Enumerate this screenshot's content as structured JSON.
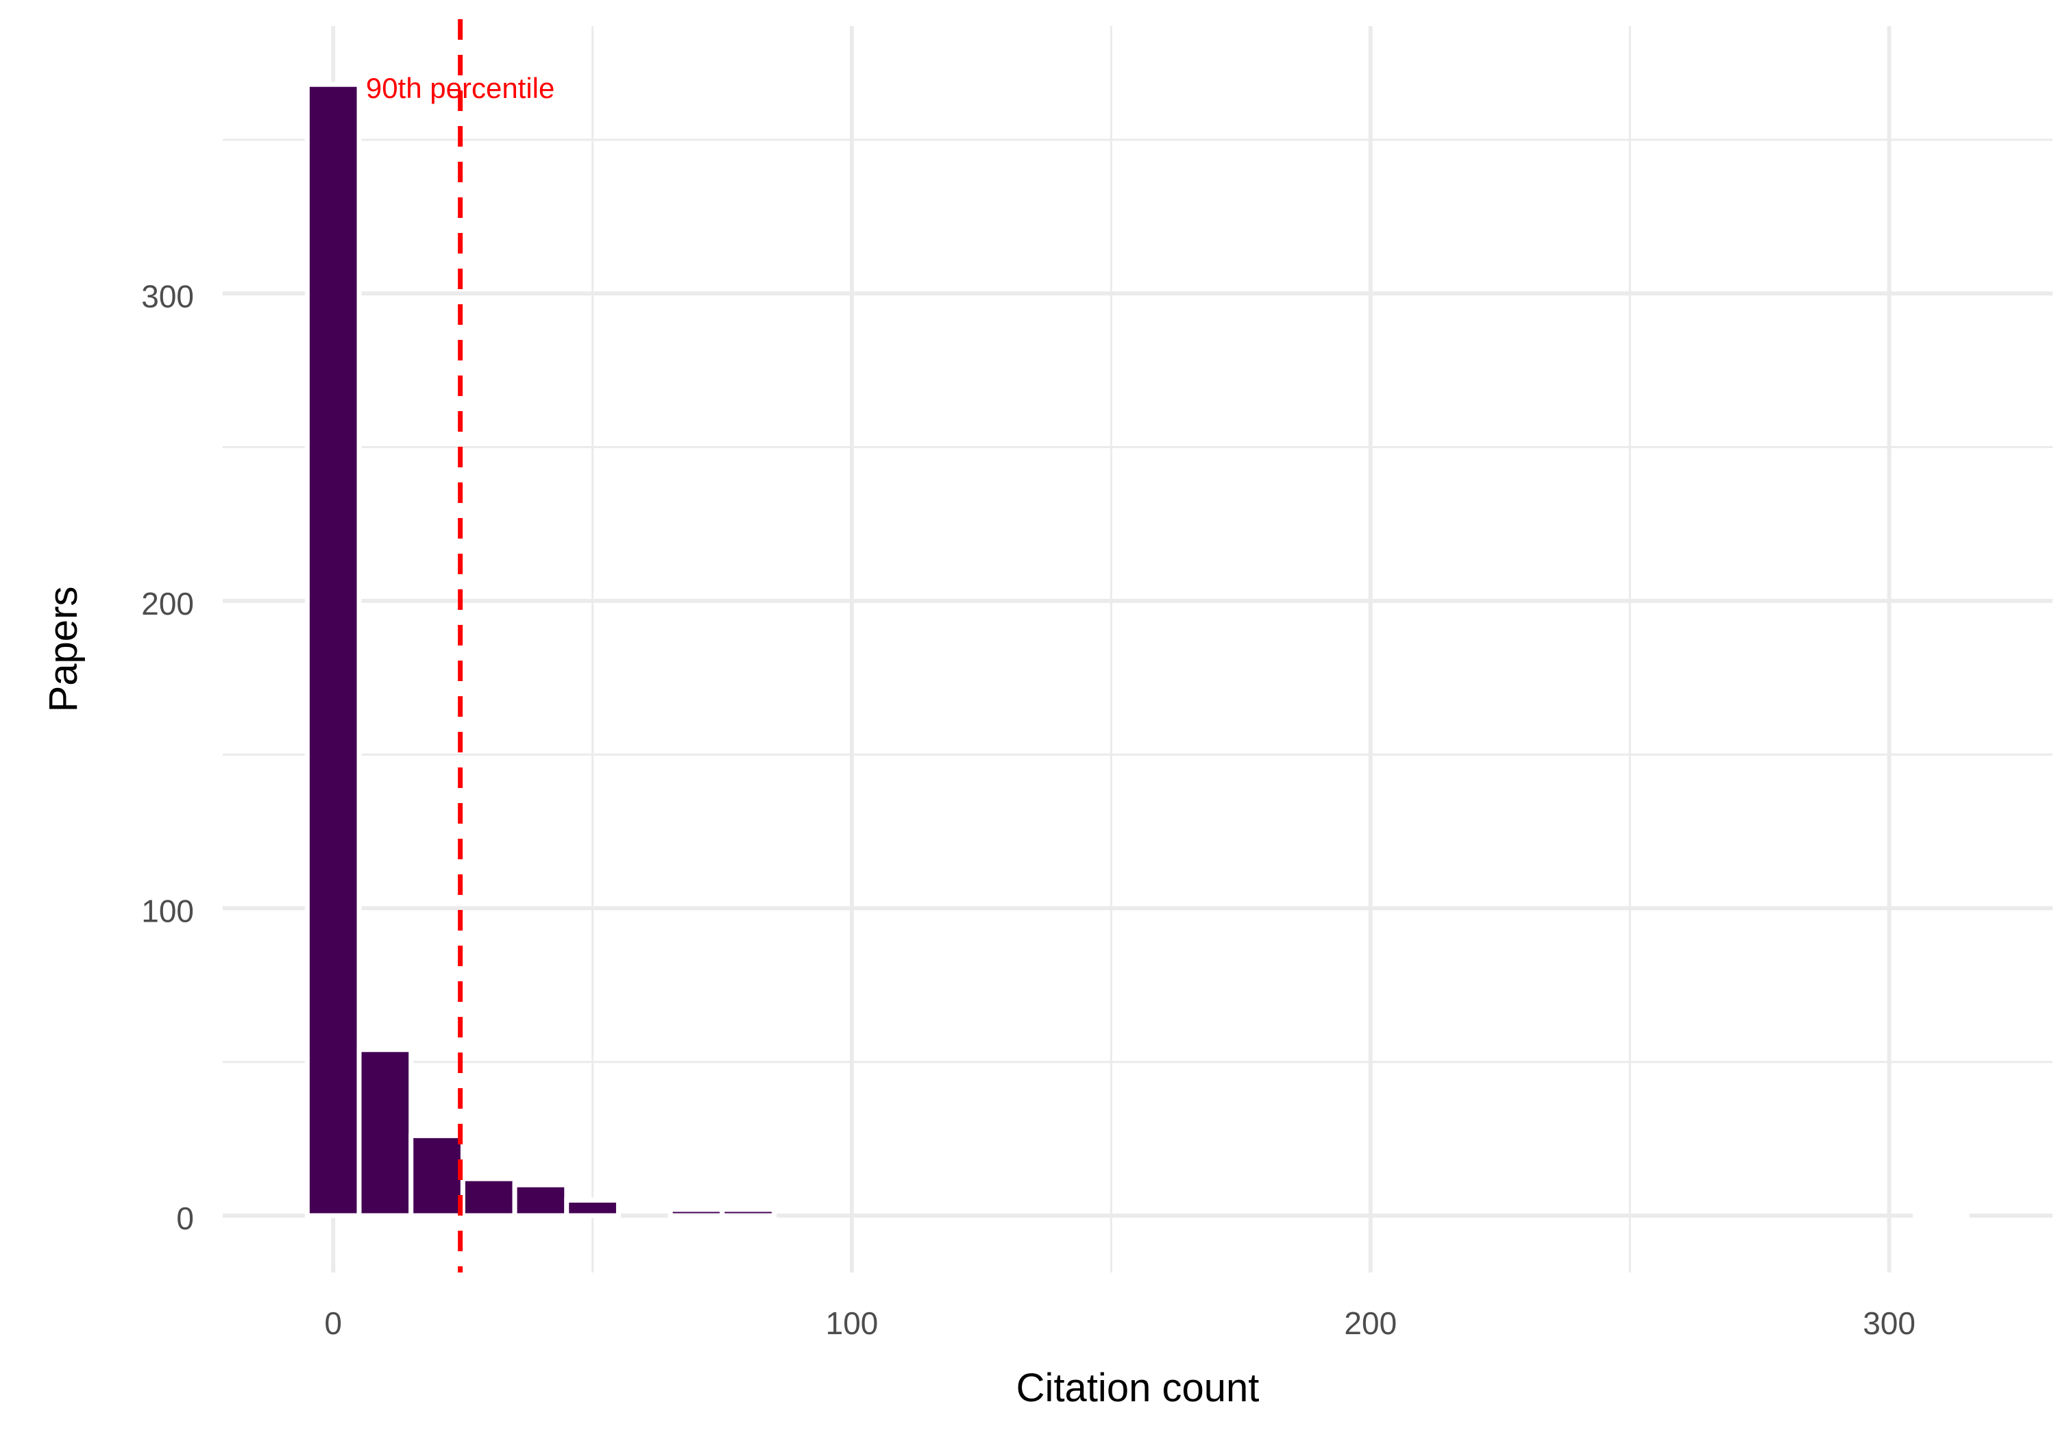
{
  "chart_data": {
    "type": "bar",
    "subtype": "histogram",
    "title": "",
    "xlabel": "Citation count",
    "ylabel": "Papers",
    "xlim": [
      -21.3,
      331.5
    ],
    "ylim": [
      -18.5,
      387
    ],
    "x_ticks": [
      0,
      100,
      200,
      300
    ],
    "x_tick_labels": [
      "0",
      "100",
      "200",
      "300"
    ],
    "y_ticks": [
      0,
      100,
      200,
      300
    ],
    "y_tick_labels": [
      "0",
      "100",
      "200",
      "300"
    ],
    "grid": true,
    "bin_width": 10,
    "bins": [
      {
        "x0": -5,
        "x1": 5,
        "count": 368
      },
      {
        "x0": 5,
        "x1": 15,
        "count": 54
      },
      {
        "x0": 15,
        "x1": 25,
        "count": 26
      },
      {
        "x0": 25,
        "x1": 35,
        "count": 12
      },
      {
        "x0": 35,
        "x1": 45,
        "count": 10
      },
      {
        "x0": 45,
        "x1": 55,
        "count": 5
      },
      {
        "x0": 55,
        "x1": 65,
        "count": 0
      },
      {
        "x0": 65,
        "x1": 75,
        "count": 2
      },
      {
        "x0": 75,
        "x1": 85,
        "count": 2
      },
      {
        "x0": 85,
        "x1": 95,
        "count": 0
      },
      {
        "x0": 95,
        "x1": 105,
        "count": 0
      },
      {
        "x0": 105,
        "x1": 115,
        "count": 0
      },
      {
        "x0": 115,
        "x1": 125,
        "count": 0
      },
      {
        "x0": 125,
        "x1": 135,
        "count": 0
      },
      {
        "x0": 135,
        "x1": 145,
        "count": 0
      },
      {
        "x0": 145,
        "x1": 155,
        "count": 0
      },
      {
        "x0": 155,
        "x1": 165,
        "count": 0
      },
      {
        "x0": 165,
        "x1": 175,
        "count": 0
      },
      {
        "x0": 175,
        "x1": 185,
        "count": 0
      },
      {
        "x0": 185,
        "x1": 195,
        "count": 0
      },
      {
        "x0": 195,
        "x1": 205,
        "count": 0
      },
      {
        "x0": 205,
        "x1": 215,
        "count": 0
      },
      {
        "x0": 215,
        "x1": 225,
        "count": 0
      },
      {
        "x0": 225,
        "x1": 235,
        "count": 0
      },
      {
        "x0": 235,
        "x1": 245,
        "count": 0
      },
      {
        "x0": 245,
        "x1": 255,
        "count": 0
      },
      {
        "x0": 255,
        "x1": 265,
        "count": 0
      },
      {
        "x0": 265,
        "x1": 275,
        "count": 0
      },
      {
        "x0": 275,
        "x1": 285,
        "count": 0
      },
      {
        "x0": 285,
        "x1": 295,
        "count": 0
      },
      {
        "x0": 295,
        "x1": 305,
        "count": 0
      },
      {
        "x0": 305,
        "x1": 315,
        "count": 1
      }
    ],
    "bar_color": "#440154",
    "reference_line": {
      "x": 24.5,
      "label": "90th percentile",
      "color": "#ff0000",
      "style": "dashed"
    }
  }
}
